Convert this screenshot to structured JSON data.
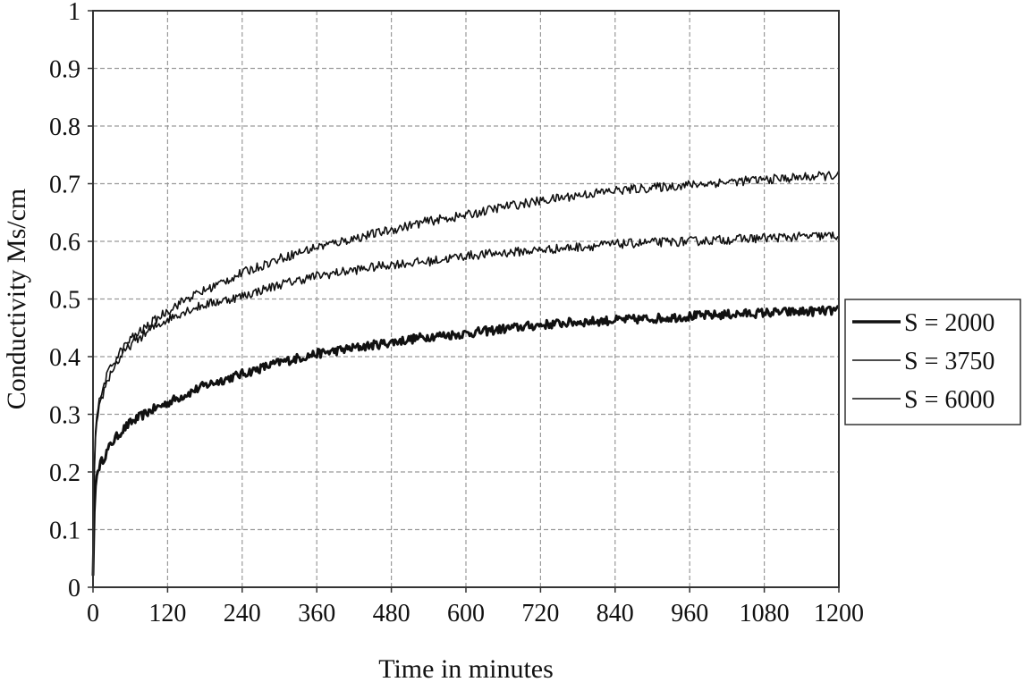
{
  "chart_data": {
    "type": "line",
    "title": "",
    "xlabel": "Time in minutes",
    "ylabel": "Conductivity Ms/cm",
    "xlim": [
      0,
      1200
    ],
    "ylim": [
      0,
      1
    ],
    "xticks": [
      0,
      120,
      240,
      360,
      480,
      600,
      720,
      840,
      960,
      1080,
      1200
    ],
    "yticks": [
      0,
      0.1,
      0.2,
      0.3,
      0.4,
      0.5,
      0.6,
      0.7,
      0.8,
      0.9,
      1
    ],
    "xtick_labels": [
      "0",
      "120",
      "240",
      "360",
      "480",
      "600",
      "720",
      "840",
      "960",
      "1080",
      "1200"
    ],
    "ytick_labels": [
      "0",
      "0.1",
      "0.2",
      "0.3",
      "0.4",
      "0.5",
      "0.6",
      "0.7",
      "0.8",
      "0.9",
      "1"
    ],
    "grid": true,
    "legend_position": "right",
    "series": [
      {
        "name": "S = 2000",
        "line_weight": "thick",
        "color": "#111111",
        "x": [
          0,
          1,
          3,
          5,
          10,
          20,
          30,
          45,
          60,
          90,
          120,
          150,
          180,
          240,
          300,
          360,
          420,
          480,
          540,
          600,
          660,
          720,
          780,
          840,
          900,
          960,
          1020,
          1080,
          1140,
          1200
        ],
        "y": [
          0.02,
          0.1,
          0.16,
          0.19,
          0.21,
          0.23,
          0.25,
          0.27,
          0.285,
          0.305,
          0.32,
          0.335,
          0.35,
          0.37,
          0.39,
          0.405,
          0.415,
          0.425,
          0.435,
          0.44,
          0.448,
          0.455,
          0.46,
          0.463,
          0.466,
          0.47,
          0.473,
          0.476,
          0.478,
          0.48
        ]
      },
      {
        "name": "S = 3750",
        "line_weight": "thin",
        "color": "#111111",
        "x": [
          0,
          1,
          3,
          5,
          10,
          20,
          30,
          45,
          60,
          90,
          120,
          150,
          180,
          240,
          300,
          360,
          420,
          480,
          540,
          600,
          660,
          720,
          780,
          840,
          900,
          960,
          1020,
          1080,
          1140,
          1200
        ],
        "y": [
          0.02,
          0.15,
          0.24,
          0.28,
          0.31,
          0.35,
          0.375,
          0.4,
          0.42,
          0.445,
          0.465,
          0.48,
          0.49,
          0.505,
          0.525,
          0.54,
          0.55,
          0.56,
          0.565,
          0.575,
          0.58,
          0.585,
          0.59,
          0.595,
          0.598,
          0.6,
          0.603,
          0.606,
          0.608,
          0.61
        ]
      },
      {
        "name": "S = 6000",
        "line_weight": "thin",
        "color": "#111111",
        "x": [
          0,
          1,
          3,
          5,
          10,
          20,
          30,
          45,
          60,
          90,
          120,
          150,
          180,
          240,
          300,
          360,
          420,
          480,
          540,
          600,
          660,
          720,
          780,
          840,
          900,
          960,
          1020,
          1080,
          1140,
          1200
        ],
        "y": [
          0.02,
          0.16,
          0.25,
          0.29,
          0.32,
          0.36,
          0.385,
          0.41,
          0.43,
          0.455,
          0.48,
          0.5,
          0.515,
          0.545,
          0.57,
          0.59,
          0.605,
          0.62,
          0.635,
          0.645,
          0.66,
          0.67,
          0.68,
          0.688,
          0.693,
          0.698,
          0.703,
          0.707,
          0.711,
          0.715
        ]
      }
    ]
  }
}
